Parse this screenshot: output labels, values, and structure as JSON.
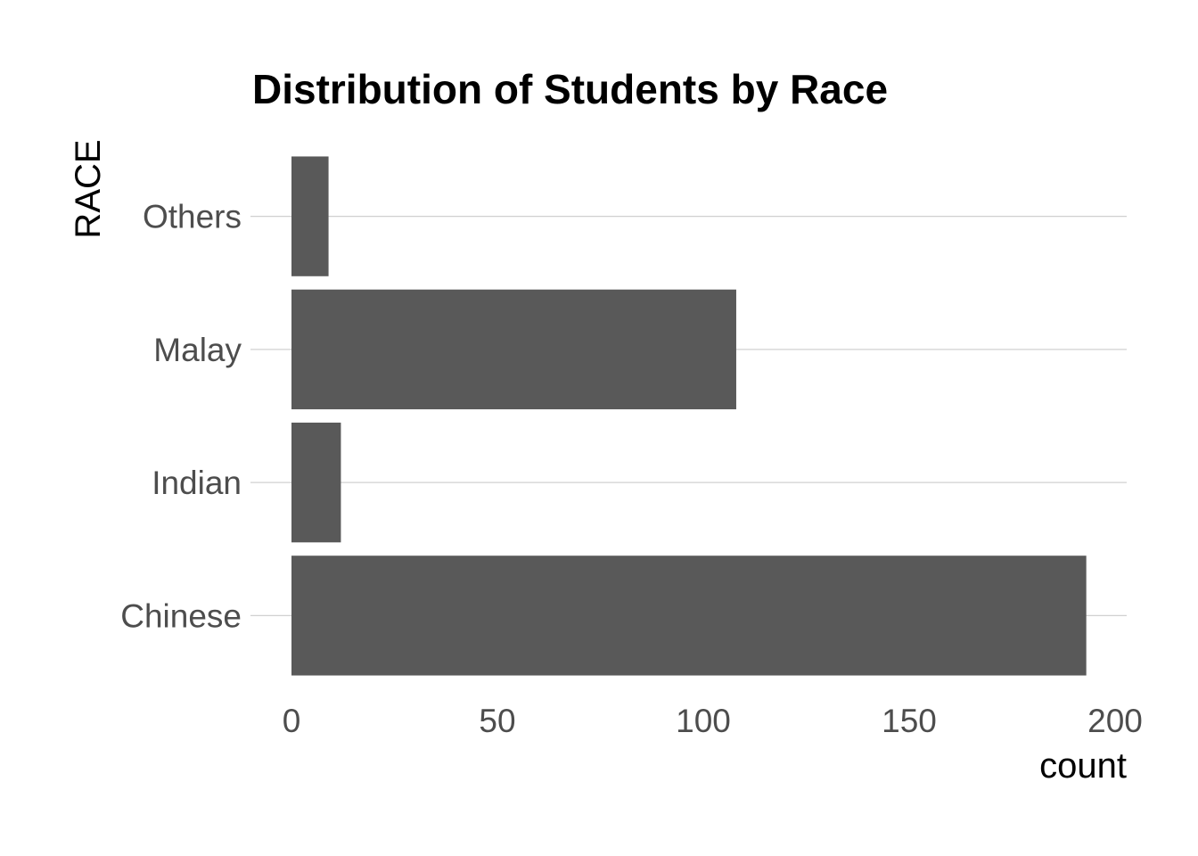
{
  "chart_data": {
    "type": "bar",
    "orientation": "horizontal",
    "title": "Distribution of Students by Race",
    "xlabel": "count",
    "ylabel": "RACE",
    "categories": [
      "Chinese",
      "Indian",
      "Malay",
      "Others"
    ],
    "values": [
      193,
      12,
      108,
      9
    ],
    "xlim": [
      0,
      200
    ],
    "xticks": [
      "0",
      "50",
      "100",
      "150",
      "200"
    ],
    "grid": "horizontal-major",
    "legend": "none",
    "colors": {
      "bar": "#595959",
      "grid": "#d0d0d0",
      "tick_text": "#4d4d4d",
      "title_text": "#000000",
      "background": "#ffffff"
    }
  }
}
